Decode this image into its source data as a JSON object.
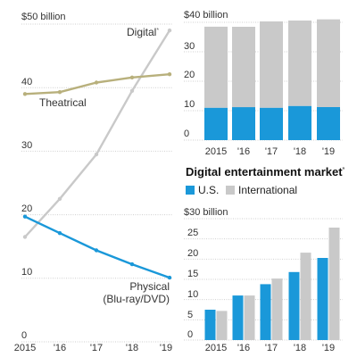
{
  "colors": {
    "digital": "#c9c9c9",
    "theatrical": "#b8b07c",
    "physical": "#1a98d9",
    "us": "#1a98d9",
    "international": "#c9c9c9",
    "grid": "#cfcfcf"
  },
  "chart_data": [
    {
      "type": "line",
      "x_labels": [
        "2015",
        "'16",
        "'17",
        "'18",
        "'19"
      ],
      "y_ticks": [
        "$50 billion",
        "40",
        "30",
        "20",
        "10",
        "0"
      ],
      "ylim": [
        0,
        50
      ],
      "series": [
        {
          "name": "Digital",
          "footnote_mark": "*",
          "values": [
            16.5,
            22.5,
            29.5,
            39.5,
            49
          ]
        },
        {
          "name": "Theatrical",
          "values": [
            39,
            39.3,
            40.8,
            41.6,
            42.1
          ]
        },
        {
          "name": "Physical",
          "name_line2": "(Blu-ray/DVD)",
          "values": [
            19.7,
            17.1,
            14.4,
            12.2,
            10.1
          ]
        }
      ]
    },
    {
      "type": "bar",
      "stacked": true,
      "categories": [
        "2015",
        "'16",
        "'17",
        "'18",
        "'19"
      ],
      "y_ticks": [
        "$40 billion",
        "30",
        "20",
        "10",
        "0"
      ],
      "ylim": [
        0,
        40
      ],
      "series": [
        {
          "name": "U.S.",
          "values": [
            11,
            11.2,
            11,
            11.6,
            11.2
          ]
        },
        {
          "name": "International",
          "values": [
            27.5,
            27.3,
            29.3,
            29,
            29.8
          ]
        }
      ]
    },
    {
      "type": "bar",
      "title": "Digital entertainment market",
      "title_mark": "*",
      "categories": [
        "2015",
        "'16",
        "'17",
        "'18",
        "'19"
      ],
      "y_ticks": [
        "$30 billion",
        "25",
        "20",
        "15",
        "10",
        "5",
        "0"
      ],
      "ylim": [
        0,
        30
      ],
      "series": [
        {
          "name": "U.S.",
          "values": [
            7.5,
            11,
            13.8,
            16.8,
            20.3
          ]
        },
        {
          "name": "International",
          "values": [
            7.2,
            11,
            15.2,
            21.6,
            27.8
          ]
        }
      ]
    }
  ]
}
